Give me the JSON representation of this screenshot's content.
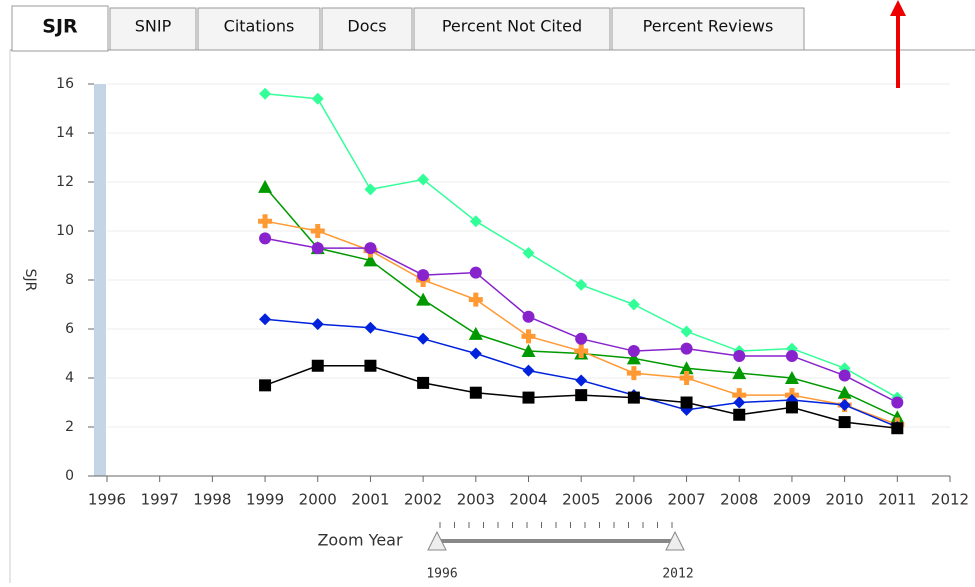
{
  "tabs": [
    "SJR",
    "SNIP",
    "Citations",
    "Docs",
    "Percent Not Cited",
    "Percent Reviews"
  ],
  "active_tab": 0,
  "chart_data": {
    "type": "line",
    "y_label": "SJR",
    "x": [
      1999,
      2000,
      2001,
      2002,
      2003,
      2004,
      2005,
      2006,
      2007,
      2008,
      2009,
      2010,
      2011
    ],
    "xlim": [
      1996,
      2012
    ],
    "xticks": [
      1996,
      1997,
      1998,
      1999,
      2000,
      2001,
      2002,
      2003,
      2004,
      2005,
      2006,
      2007,
      2008,
      2009,
      2010,
      2011,
      2012
    ],
    "ylim": [
      0,
      16
    ],
    "yticks": [
      0,
      2,
      4,
      6,
      8,
      10,
      12,
      14,
      16
    ],
    "grid": true,
    "series": [
      {
        "color": "#33ff99",
        "marker": "diamond",
        "values": [
          15.6,
          15.4,
          11.7,
          12.1,
          10.4,
          9.1,
          7.8,
          7.0,
          5.9,
          5.1,
          5.2,
          4.4,
          3.2
        ]
      },
      {
        "color": "#009900",
        "marker": "triangle",
        "values": [
          11.8,
          9.3,
          8.8,
          7.2,
          5.8,
          5.1,
          5.0,
          4.8,
          4.4,
          4.2,
          4.0,
          3.4,
          2.4
        ]
      },
      {
        "color": "#ff9933",
        "marker": "plus",
        "values": [
          10.4,
          10.0,
          9.2,
          8.0,
          7.2,
          5.7,
          5.1,
          4.2,
          4.0,
          3.3,
          3.3,
          2.9,
          2.1
        ]
      },
      {
        "color": "#8822cc",
        "marker": "circle",
        "values": [
          9.7,
          9.3,
          9.3,
          8.2,
          8.3,
          6.5,
          5.6,
          5.1,
          5.2,
          4.9,
          4.9,
          4.1,
          3.0
        ]
      },
      {
        "color": "#0022dd",
        "marker": "diamond",
        "values": [
          6.4,
          6.2,
          6.05,
          5.6,
          5.0,
          4.3,
          3.9,
          3.3,
          2.7,
          3.0,
          3.1,
          2.9,
          2.0
        ]
      },
      {
        "color": "#000000",
        "marker": "square",
        "values": [
          3.7,
          4.5,
          4.5,
          3.8,
          3.4,
          3.2,
          3.3,
          3.2,
          3.0,
          2.5,
          2.8,
          2.2,
          1.95
        ]
      }
    ]
  },
  "zoom": {
    "label": "Zoom Year",
    "start": 1996,
    "end": 2012
  }
}
